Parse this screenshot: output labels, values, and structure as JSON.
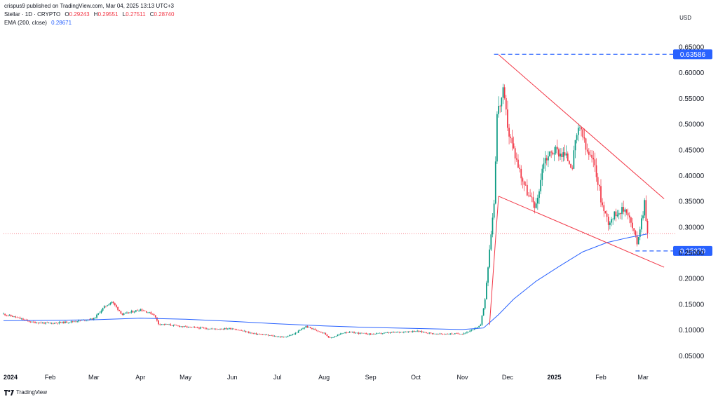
{
  "header": {
    "published": "crispus9 published on TradingView.com, Mar 04, 2025 13:13 UTC+3",
    "symbol_line": "Stellar · 1D · CRYPTO",
    "o_label": "O",
    "o_value": "0.29243",
    "h_label": "H",
    "h_value": "0.29551",
    "l_label": "L",
    "l_value": "0.27511",
    "c_label": "C",
    "c_value": "0.28740",
    "ema_label": "EMA (200, close)",
    "ema_value": "0.28671"
  },
  "currency": "USD",
  "branding": "TradingView",
  "colors": {
    "up": "#089981",
    "down": "#f23645",
    "ema": "#2962ff",
    "trendline": "#f23645",
    "level": "#2962ff",
    "last_price_line": "#f23645"
  },
  "chart_data": {
    "type": "candlestick",
    "y_axis_ticks": [
      "0.65000",
      "0.60000",
      "0.55000",
      "0.50000",
      "0.45000",
      "0.40000",
      "0.35000",
      "0.30000",
      "0.25000",
      "0.20000",
      "0.15000",
      "0.10000",
      "0.05000"
    ],
    "x_axis_ticks": [
      "2024",
      "Feb",
      "Mar",
      "Apr",
      "May",
      "Jun",
      "Jul",
      "Aug",
      "Sep",
      "Oct",
      "Nov",
      "Dec",
      "2025",
      "Feb",
      "Mar"
    ],
    "ylim": [
      0.03,
      0.68
    ],
    "levels": [
      {
        "label": "0.63586",
        "value": 0.63586
      },
      {
        "label": "0.25370",
        "value": 0.2537
      }
    ],
    "last_price": 0.2874,
    "ema_value": 0.28671,
    "trendlines": [
      {
        "from": {
          "date": "2024-11-25",
          "price": 0.635
        },
        "to": {
          "date": "2025-03-15",
          "price": 0.355
        }
      },
      {
        "from": {
          "date": "2024-11-25",
          "price": 0.36
        },
        "to": {
          "date": "2025-03-15",
          "price": 0.222
        }
      },
      {
        "from": {
          "date": "2024-11-19",
          "price": 0.11
        },
        "to": {
          "date": "2024-11-25",
          "price": 0.36
        }
      }
    ],
    "price_path": [
      [
        "2024-01-01",
        0.131
      ],
      [
        "2024-01-10",
        0.124
      ],
      [
        "2024-01-20",
        0.115
      ],
      [
        "2024-02-01",
        0.113
      ],
      [
        "2024-02-15",
        0.116
      ],
      [
        "2024-03-01",
        0.122
      ],
      [
        "2024-03-08",
        0.145
      ],
      [
        "2024-03-13",
        0.155
      ],
      [
        "2024-03-20",
        0.13
      ],
      [
        "2024-04-01",
        0.14
      ],
      [
        "2024-04-10",
        0.13
      ],
      [
        "2024-04-13",
        0.112
      ],
      [
        "2024-04-20",
        0.11
      ],
      [
        "2024-05-01",
        0.106
      ],
      [
        "2024-05-20",
        0.102
      ],
      [
        "2024-06-01",
        0.103
      ],
      [
        "2024-06-15",
        0.093
      ],
      [
        "2024-07-05",
        0.086
      ],
      [
        "2024-07-12",
        0.092
      ],
      [
        "2024-07-20",
        0.107
      ],
      [
        "2024-08-01",
        0.094
      ],
      [
        "2024-08-05",
        0.084
      ],
      [
        "2024-08-15",
        0.096
      ],
      [
        "2024-09-01",
        0.092
      ],
      [
        "2024-09-15",
        0.095
      ],
      [
        "2024-10-01",
        0.098
      ],
      [
        "2024-10-15",
        0.092
      ],
      [
        "2024-11-01",
        0.093
      ],
      [
        "2024-11-08",
        0.1
      ],
      [
        "2024-11-13",
        0.11
      ],
      [
        "2024-11-16",
        0.16
      ],
      [
        "2024-11-19",
        0.26
      ],
      [
        "2024-11-22",
        0.35
      ],
      [
        "2024-11-24",
        0.52
      ],
      [
        "2024-11-28",
        0.56
      ],
      [
        "2024-12-02",
        0.48
      ],
      [
        "2024-12-06",
        0.44
      ],
      [
        "2024-12-10",
        0.4
      ],
      [
        "2024-12-15",
        0.36
      ],
      [
        "2024-12-20",
        0.34
      ],
      [
        "2024-12-25",
        0.43
      ],
      [
        "2025-01-01",
        0.45
      ],
      [
        "2025-01-08",
        0.44
      ],
      [
        "2025-01-13",
        0.42
      ],
      [
        "2025-01-16",
        0.48
      ],
      [
        "2025-01-19",
        0.49
      ],
      [
        "2025-01-22",
        0.45
      ],
      [
        "2025-01-28",
        0.42
      ],
      [
        "2025-02-02",
        0.34
      ],
      [
        "2025-02-06",
        0.31
      ],
      [
        "2025-02-12",
        0.33
      ],
      [
        "2025-02-18",
        0.335
      ],
      [
        "2025-02-25",
        0.27
      ],
      [
        "2025-03-01",
        0.33
      ],
      [
        "2025-03-02",
        0.35
      ],
      [
        "2025-03-04",
        0.287
      ]
    ],
    "ema_path": [
      [
        "2024-01-01",
        0.118
      ],
      [
        "2024-02-01",
        0.119
      ],
      [
        "2024-03-01",
        0.12
      ],
      [
        "2024-04-01",
        0.123
      ],
      [
        "2024-05-01",
        0.121
      ],
      [
        "2024-06-01",
        0.117
      ],
      [
        "2024-07-01",
        0.112
      ],
      [
        "2024-08-01",
        0.108
      ],
      [
        "2024-09-01",
        0.105
      ],
      [
        "2024-10-01",
        0.103
      ],
      [
        "2024-11-01",
        0.101
      ],
      [
        "2024-11-15",
        0.104
      ],
      [
        "2024-11-25",
        0.13
      ],
      [
        "2024-12-05",
        0.16
      ],
      [
        "2024-12-20",
        0.195
      ],
      [
        "2025-01-05",
        0.225
      ],
      [
        "2025-01-20",
        0.252
      ],
      [
        "2025-02-05",
        0.27
      ],
      [
        "2025-02-20",
        0.28
      ],
      [
        "2025-03-04",
        0.28671
      ]
    ]
  }
}
